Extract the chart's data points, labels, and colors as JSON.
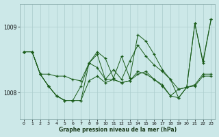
{
  "xlabel": "Graphe pression niveau de la mer (hPa)",
  "bg_color": "#cce8e8",
  "grid_color": "#aacccc",
  "line_color": "#1a5c1a",
  "marker": "+",
  "xlim": [
    -0.5,
    23.5
  ],
  "ylim": [
    1007.6,
    1009.35
  ],
  "yticks": [
    1008,
    1009
  ],
  "xticks": [
    0,
    1,
    2,
    3,
    4,
    5,
    6,
    7,
    8,
    9,
    10,
    11,
    12,
    13,
    14,
    15,
    16,
    17,
    18,
    19,
    20,
    21,
    22,
    23
  ],
  "series": [
    [
      1008.62,
      1008.62,
      1008.28,
      1008.28,
      1008.25,
      1008.25,
      1008.2,
      1008.18,
      1008.45,
      1008.38,
      1008.2,
      1008.2,
      1008.15,
      1008.18,
      1008.28,
      1008.32,
      1008.2,
      1008.12,
      1007.95,
      1008.05,
      1008.08,
      1008.12,
      1008.28,
      1008.28
    ],
    [
      1008.62,
      1008.62,
      1008.28,
      1008.1,
      1007.95,
      1007.88,
      1007.88,
      1007.88,
      1008.18,
      1008.25,
      1008.15,
      1008.2,
      1008.15,
      1008.18,
      1008.32,
      1008.28,
      1008.2,
      1008.1,
      1007.95,
      1007.92,
      1008.08,
      1008.1,
      1008.25,
      1008.25
    ],
    [
      1008.62,
      1008.62,
      1008.28,
      1008.1,
      1007.95,
      1007.88,
      1007.88,
      1007.88,
      1008.45,
      1008.58,
      1008.2,
      1008.35,
      1008.2,
      1008.48,
      1008.72,
      1008.55,
      1008.42,
      1008.32,
      1008.2,
      1007.92,
      1008.08,
      1009.05,
      1008.45,
      1009.12
    ],
    [
      1008.62,
      1008.62,
      1008.28,
      1008.1,
      1007.95,
      1007.88,
      1007.88,
      1008.1,
      1008.45,
      1008.62,
      1008.52,
      1008.22,
      1008.55,
      1008.22,
      1008.88,
      1008.78,
      1008.58,
      1008.35,
      1008.2,
      1008.05,
      1008.08,
      1009.05,
      1008.48,
      1009.12
    ]
  ]
}
